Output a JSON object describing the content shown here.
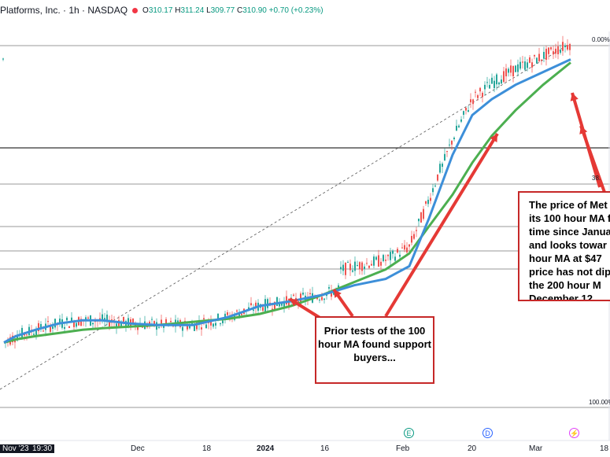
{
  "header": {
    "title": "Platforms, Inc. · 1h · NASDAQ",
    "open_label": "O",
    "open": "310.17",
    "high_label": "H",
    "high": "311.24",
    "low_label": "L",
    "low": "309.77",
    "close_label": "C",
    "close": "310.90",
    "change": "+0.70 (+0.23%)"
  },
  "fib_labels": [
    "0.00%",
    "38.",
    "100.00%"
  ],
  "x_axis": {
    "labels": [
      "Nov '23",
      "19:30",
      "Dec",
      "18",
      "2024",
      "16",
      "Feb",
      "20",
      "Mar",
      "18"
    ]
  },
  "events": [
    {
      "letter": "E",
      "color": "#089981"
    },
    {
      "letter": "D",
      "color": "#2962ff"
    },
    {
      "letter": "⚡",
      "color": "#e040fb"
    }
  ],
  "annotations": {
    "prior_tests": "Prior tests of the 100 hour MA found support buyers...",
    "price_note_lines": [
      "The price of Met",
      "its 100 hour MA f",
      "time since Janua",
      "and looks towar",
      "hour MA at $47",
      "price has not dip",
      "the 200 hour M",
      "December 12"
    ]
  },
  "colors": {
    "ma100": "#3d8fd9",
    "ma200": "#4caf50",
    "candle_up": "#26a69a",
    "candle_down": "#ef5350",
    "arrow": "#e53935"
  },
  "chart_data": {
    "type": "line",
    "title": "Platforms, Inc. · 1h · NASDAQ",
    "x_ticks": [
      "Nov '23",
      "Dec",
      "18",
      "2024",
      "16",
      "Feb",
      "20",
      "Mar",
      "18"
    ],
    "series": [
      {
        "values": [
          322,
          326,
          330,
          334,
          336,
          336,
          334,
          333,
          333,
          338,
          345,
          348,
          352,
          358,
          362,
          370,
          400,
          440,
          465,
          475,
          484,
          492,
          500
        ]
      },
      {
        "values": [
          322,
          324,
          326,
          328,
          330,
          331,
          332,
          333,
          335,
          337,
          340,
          345,
          352,
          360,
          368,
          378,
          395,
          415,
          435,
          452,
          468,
          484,
          498
        ]
      }
    ],
    "x": [
      "Nov 30",
      "Dec 4",
      "Dec 8",
      "Dec 12",
      "Dec 16",
      "Dec 20",
      "Dec 24",
      "Dec 28",
      "Jan 1",
      "Jan 5",
      "Jan 9",
      "Jan 13",
      "Jan 17",
      "Jan 21",
      "Jan 25",
      "Jan 31",
      "Feb 5",
      "Feb 10",
      "Feb 15",
      "Feb 20",
      "Feb 26",
      "Mar 1",
      "Mar 6"
    ],
    "grid": false
  }
}
